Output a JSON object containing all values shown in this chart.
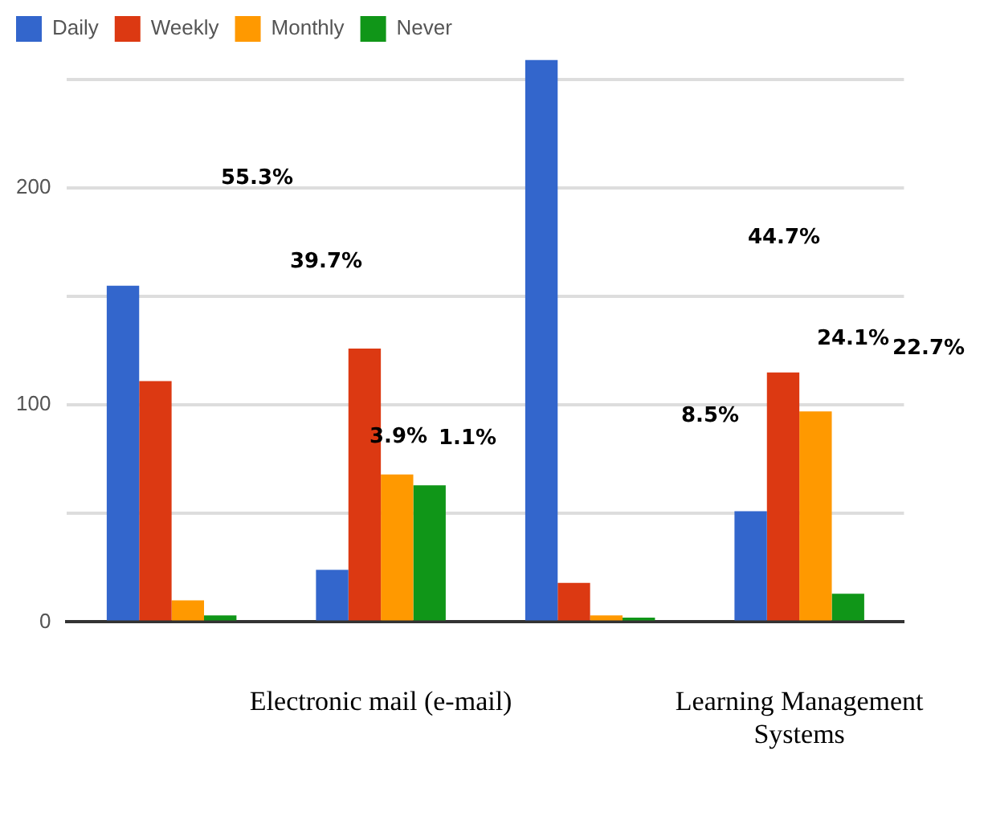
{
  "chart_data": {
    "type": "bar",
    "categories": [
      null,
      "Electronic mail (e-mail)",
      null,
      "Learning Management Systems"
    ],
    "series": [
      {
        "name": "Daily",
        "color": "#3366cc",
        "values": [
          155,
          24,
          259,
          51
        ]
      },
      {
        "name": "Weekly",
        "color": "#dc3912",
        "values": [
          111,
          126,
          18,
          115
        ]
      },
      {
        "name": "Monthly",
        "color": "#ff9900",
        "values": [
          10,
          68,
          3,
          97
        ]
      },
      {
        "name": "Never",
        "color": "#109618",
        "values": [
          3,
          63,
          2,
          13
        ]
      }
    ],
    "ylim": [
      0,
      260
    ],
    "yticks": [
      0,
      {
        "value": 50,
        "label": null
      },
      100,
      {
        "value": 150,
        "label": null
      },
      200,
      {
        "value": 250,
        "label": null
      }
    ],
    "grid": "y",
    "legend": "top left",
    "annotations": [
      "55.3%",
      "39.7%",
      "3.9%",
      "1.1%",
      "44.7%",
      "8.5%",
      "24.1%",
      "22.7%"
    ]
  }
}
